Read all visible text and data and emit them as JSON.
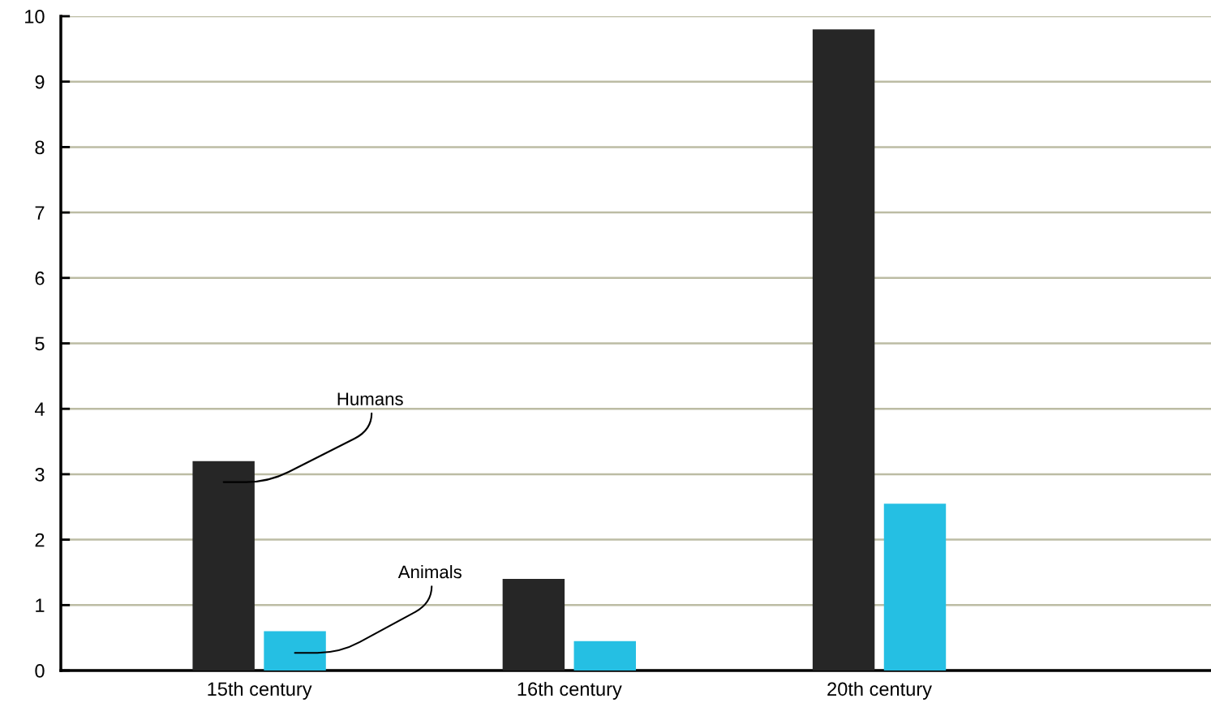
{
  "chart_data": {
    "type": "bar",
    "categories": [
      "15th century",
      "16th century",
      "20th century"
    ],
    "series": [
      {
        "name": "Humans",
        "color": "#262626",
        "values": [
          3.2,
          1.4,
          9.8
        ]
      },
      {
        "name": "Animals",
        "color": "#25bfe3",
        "values": [
          0.6,
          0.45,
          2.55
        ]
      }
    ],
    "ylim": [
      0,
      10
    ],
    "yticks": [
      0,
      1,
      2,
      3,
      4,
      5,
      6,
      7,
      8,
      9,
      10
    ],
    "grid": "y",
    "legend": false
  }
}
